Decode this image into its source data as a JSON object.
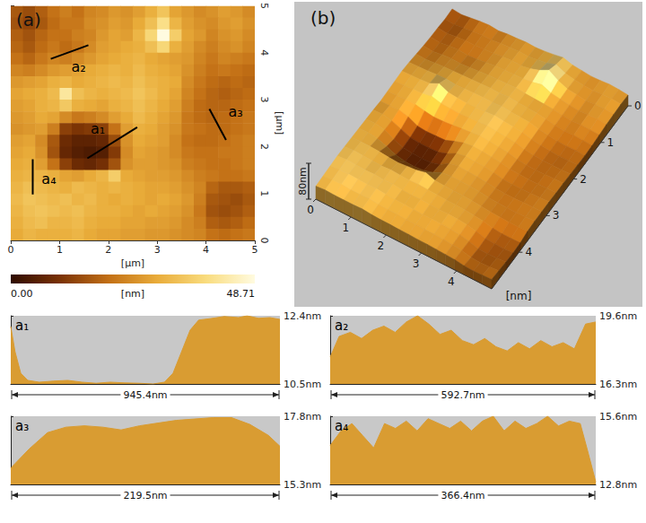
{
  "chart_data": [
    {
      "type": "heatmap",
      "title": "(a)",
      "xlim": [
        0,
        5
      ],
      "ylim": [
        0,
        5
      ],
      "xticks": [
        0,
        1,
        2,
        3,
        4,
        5
      ],
      "yticks": [
        0,
        1,
        2,
        3,
        4,
        5
      ],
      "x_label": "[µm]",
      "y_label": "[µm]",
      "cells": [
        [
          16,
          14,
          17,
          20,
          22,
          20,
          23,
          24,
          26,
          25,
          27,
          30,
          34,
          28,
          26,
          24,
          25,
          27,
          26,
          24
        ],
        [
          15,
          13,
          16,
          19,
          21,
          21,
          24,
          25,
          27,
          26,
          29,
          33,
          40,
          31,
          27,
          25,
          24,
          26,
          27,
          25
        ],
        [
          17,
          15,
          18,
          20,
          20,
          22,
          23,
          26,
          28,
          27,
          31,
          38,
          48.71,
          36,
          28,
          26,
          23,
          25,
          26,
          24
        ],
        [
          18,
          16,
          19,
          21,
          19,
          21,
          24,
          27,
          28,
          29,
          30,
          33,
          38,
          30,
          27,
          24,
          22,
          24,
          25,
          23
        ],
        [
          20,
          18,
          21,
          23,
          22,
          24,
          26,
          28,
          29,
          30,
          31,
          29,
          28,
          27,
          26,
          23,
          21,
          23,
          22,
          21
        ],
        [
          23,
          22,
          24,
          26,
          27,
          28,
          29,
          30,
          31,
          30,
          32,
          30,
          29,
          28,
          25,
          22,
          20,
          21,
          20,
          19
        ],
        [
          26,
          27,
          28,
          30,
          31,
          29,
          30,
          31,
          32,
          31,
          33,
          31,
          30,
          29,
          24,
          21,
          19,
          18,
          19,
          18
        ],
        [
          28,
          29,
          30,
          32,
          42,
          33,
          31,
          30,
          31,
          32,
          34,
          32,
          30,
          28,
          23,
          20,
          18,
          17,
          18,
          19
        ],
        [
          27,
          28,
          30,
          31,
          35,
          30,
          29,
          28,
          30,
          31,
          33,
          31,
          29,
          27,
          22,
          19,
          18,
          18,
          19,
          20
        ],
        [
          26,
          27,
          29,
          28,
          24,
          21,
          22,
          24,
          27,
          29,
          32,
          30,
          28,
          26,
          21,
          19,
          18,
          19,
          20,
          21
        ],
        [
          25,
          26,
          27,
          22,
          12,
          10,
          11,
          12,
          20,
          27,
          30,
          29,
          27,
          25,
          21,
          20,
          19,
          19,
          20,
          21
        ],
        [
          27,
          28,
          24,
          16,
          8,
          6,
          6,
          7,
          14,
          25,
          29,
          28,
          27,
          24,
          20,
          19,
          19,
          20,
          21,
          22
        ],
        [
          28,
          29,
          25,
          15,
          7,
          5,
          4,
          5,
          11,
          24,
          28,
          27,
          26,
          24,
          21,
          20,
          20,
          21,
          21,
          22
        ],
        [
          29,
          30,
          27,
          20,
          12,
          8,
          7,
          9,
          15,
          25,
          27,
          27,
          26,
          25,
          22,
          21,
          20,
          20,
          21,
          22
        ],
        [
          30,
          31,
          31,
          30,
          28,
          27,
          29,
          31,
          36,
          29,
          28,
          27,
          27,
          26,
          24,
          22,
          21,
          20,
          20,
          21
        ],
        [
          31,
          33,
          32,
          31,
          30,
          32,
          31,
          30,
          31,
          30,
          29,
          28,
          28,
          27,
          25,
          23,
          18,
          16,
          16,
          17
        ],
        [
          32,
          34,
          33,
          32,
          33,
          31,
          32,
          30,
          29,
          30,
          29,
          28,
          29,
          28,
          26,
          22,
          16,
          15,
          14,
          16
        ],
        [
          31,
          33,
          34,
          33,
          32,
          33,
          31,
          30,
          30,
          29,
          28,
          29,
          28,
          27,
          25,
          21,
          15,
          14,
          15,
          17
        ],
        [
          30,
          32,
          33,
          31,
          31,
          32,
          30,
          29,
          29,
          28,
          28,
          27,
          27,
          26,
          24,
          22,
          17,
          16,
          17,
          19
        ],
        [
          29,
          31,
          30,
          30,
          30,
          31,
          29,
          28,
          28,
          27,
          27,
          26,
          26,
          25,
          24,
          23,
          20,
          19,
          20,
          21
        ]
      ],
      "colorbar": {
        "range": [
          0,
          48.71
        ],
        "ticks": [
          {
            "value": 0,
            "label": "0.00"
          },
          {
            "value": 48.71,
            "label": "48.71"
          }
        ],
        "label": "[nm]",
        "colors": [
          "#2e0b00",
          "#7a3205",
          "#c26f15",
          "#e9ac3a",
          "#f9dc7e",
          "#fffbe0"
        ]
      },
      "lines": [
        {
          "label": "a₁",
          "from": [
            1.57,
            1.75
          ],
          "to": [
            2.59,
            2.41
          ]
        },
        {
          "label": "a₂",
          "from": [
            0.82,
            3.87
          ],
          "to": [
            1.59,
            4.16
          ]
        },
        {
          "label": "a₃",
          "from": [
            4.07,
            2.8
          ],
          "to": [
            4.41,
            2.14
          ]
        },
        {
          "label": "a₄",
          "from": [
            0.45,
            1.73
          ],
          "to": [
            0.45,
            0.98
          ]
        }
      ]
    },
    {
      "type": "surface3d",
      "title": "(b)",
      "xlim": [
        0,
        5
      ],
      "ylim": [
        0,
        5
      ],
      "xticks": [
        0,
        1,
        2,
        3,
        4
      ],
      "yticks": [
        0,
        1,
        2,
        3,
        4
      ],
      "x_label": "[nm]",
      "zlim": [
        0,
        80
      ],
      "zticks": [
        {
          "value": 80,
          "label": "80nm"
        }
      ]
    },
    {
      "type": "area",
      "title": "a₁",
      "xlim": [
        0,
        945.4
      ],
      "ylim": [
        10.5,
        12.4
      ],
      "yticks": [
        {
          "value": 10.5,
          "label": "10.5nm"
        },
        {
          "value": 12.4,
          "label": "12.4nm"
        }
      ],
      "x": [
        0,
        15,
        35,
        60,
        100,
        150,
        200,
        250,
        300,
        350,
        400,
        450,
        500,
        540,
        570,
        600,
        630,
        660,
        700,
        750,
        800,
        830,
        870,
        910,
        945.4
      ],
      "values": [
        12.1,
        11.4,
        10.8,
        10.6,
        10.55,
        10.58,
        10.6,
        10.55,
        10.52,
        10.55,
        10.53,
        10.52,
        10.5,
        10.55,
        10.8,
        11.4,
        12.0,
        12.28,
        12.32,
        12.38,
        12.35,
        12.4,
        12.33,
        12.35,
        12.3
      ],
      "span": {
        "value": 945.4,
        "label": "945.4nm"
      },
      "color": "#d99c32",
      "tick_labels": "y"
    },
    {
      "type": "area",
      "title": "a₂",
      "xlim": [
        0,
        592.7
      ],
      "ylim": [
        16.3,
        19.6
      ],
      "yticks": [
        {
          "value": 16.3,
          "label": "16.3nm"
        },
        {
          "value": 19.6,
          "label": "19.6nm"
        }
      ],
      "x": [
        0,
        20,
        45,
        70,
        95,
        120,
        145,
        170,
        195,
        220,
        245,
        270,
        295,
        320,
        345,
        370,
        395,
        420,
        445,
        470,
        495,
        520,
        545,
        570,
        592.7
      ],
      "values": [
        17.6,
        18.6,
        18.8,
        18.5,
        18.9,
        19.1,
        18.8,
        19.3,
        19.6,
        19.2,
        18.7,
        18.9,
        18.4,
        18.2,
        18.5,
        18.1,
        17.9,
        18.3,
        18.0,
        18.4,
        18.1,
        18.3,
        18.0,
        19.2,
        19.3
      ],
      "span": {
        "value": 592.7,
        "label": "592.7nm"
      },
      "color": "#d99c32",
      "tick_labels": "y"
    },
    {
      "type": "area",
      "title": "a₃",
      "xlim": [
        0,
        219.5
      ],
      "ylim": [
        15.3,
        17.8
      ],
      "yticks": [
        {
          "value": 15.3,
          "label": "15.3nm"
        },
        {
          "value": 17.8,
          "label": "17.8nm"
        }
      ],
      "x": [
        0,
        15,
        30,
        45,
        60,
        75,
        90,
        105,
        120,
        135,
        150,
        165,
        180,
        195,
        210,
        219.5
      ],
      "values": [
        15.9,
        16.6,
        17.2,
        17.4,
        17.45,
        17.4,
        17.3,
        17.45,
        17.55,
        17.65,
        17.7,
        17.75,
        17.75,
        17.5,
        17.1,
        16.7
      ],
      "span": {
        "value": 219.5,
        "label": "219.5nm"
      },
      "color": "#d99c32",
      "tick_labels": "y"
    },
    {
      "type": "area",
      "title": "a₄",
      "xlim": [
        0,
        366.4
      ],
      "ylim": [
        12.8,
        15.6
      ],
      "yticks": [
        {
          "value": 12.8,
          "label": "12.8nm"
        },
        {
          "value": 15.6,
          "label": "15.6nm"
        }
      ],
      "x": [
        0,
        15,
        30,
        45,
        60,
        75,
        90,
        105,
        120,
        135,
        150,
        165,
        180,
        195,
        210,
        225,
        240,
        255,
        270,
        285,
        300,
        315,
        330,
        345,
        355,
        366.4
      ],
      "values": [
        14.4,
        15.0,
        15.3,
        14.8,
        14.3,
        15.3,
        15.1,
        15.4,
        15.0,
        15.5,
        15.3,
        15.1,
        15.4,
        15.0,
        15.4,
        15.6,
        15.0,
        15.4,
        15.1,
        15.3,
        15.6,
        15.2,
        15.4,
        15.3,
        14.2,
        12.9
      ],
      "span": {
        "value": 366.4,
        "label": "366.4nm"
      },
      "color": "#d99c32",
      "tick_labels": "y"
    }
  ]
}
